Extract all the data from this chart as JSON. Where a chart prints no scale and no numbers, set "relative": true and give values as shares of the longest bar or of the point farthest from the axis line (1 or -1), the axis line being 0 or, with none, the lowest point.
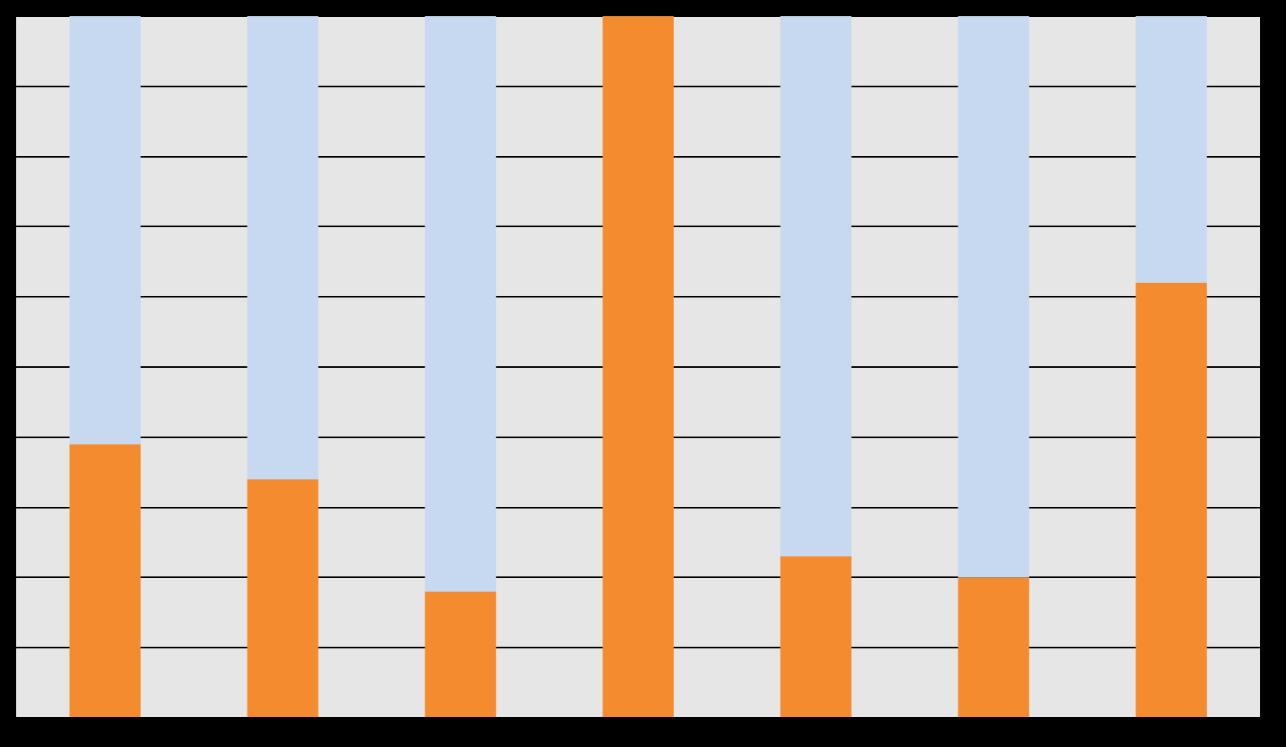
{
  "chart_data": {
    "type": "bar",
    "stacked": true,
    "relative": true,
    "grid": "y",
    "legend": false,
    "categories": [
      null,
      null,
      null,
      null,
      null,
      null,
      null
    ],
    "series": [
      {
        "color": "#f58b2f",
        "values": [
          0.39,
          0.34,
          0.18,
          1,
          0.23,
          0.2,
          0.62
        ]
      },
      {
        "color": "#c6d9f0",
        "values": [
          0.61,
          0.66,
          0.82,
          0,
          0.77,
          0.8,
          0.38
        ]
      }
    ]
  }
}
